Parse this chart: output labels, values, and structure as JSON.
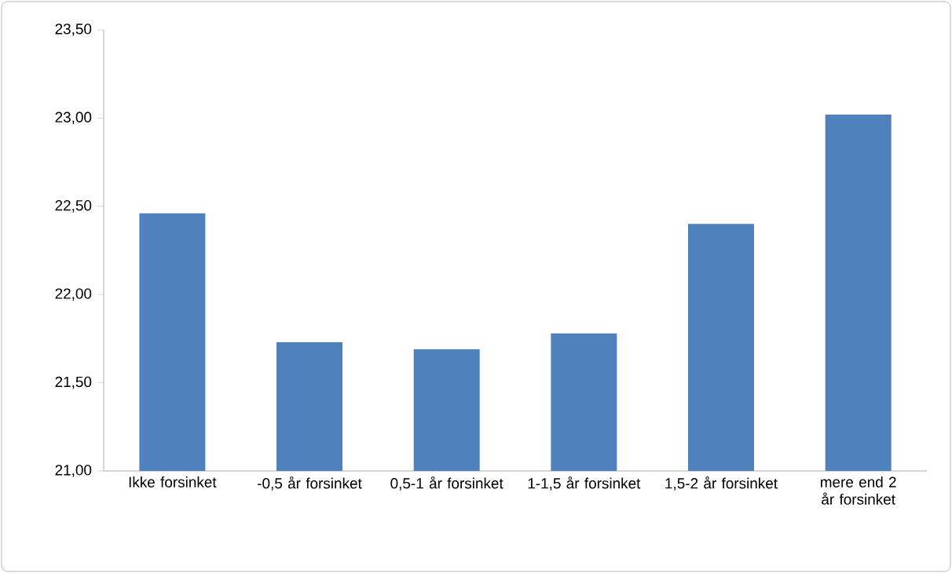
{
  "chart_data": {
    "type": "bar",
    "categories": [
      "Ikke forsinket",
      "-0,5 år forsinket",
      "0,5-1 år forsinket",
      "1-1,5 år forsinket",
      "1,5-2 år forsinket",
      "mere end 2 år forsinket"
    ],
    "values": [
      22.46,
      21.73,
      21.69,
      21.78,
      22.4,
      23.02
    ],
    "color": "#4f81bd",
    "ylim": [
      21,
      23.5
    ],
    "yticks": [
      {
        "value": 21,
        "label": "21,00"
      },
      {
        "value": 21.5,
        "label": "21,50"
      },
      {
        "value": 22,
        "label": "22,00"
      },
      {
        "value": 22.5,
        "label": "22,50"
      },
      {
        "value": 23,
        "label": "23,00"
      },
      {
        "value": 23.5,
        "label": "23,50"
      }
    ],
    "grid": false
  }
}
